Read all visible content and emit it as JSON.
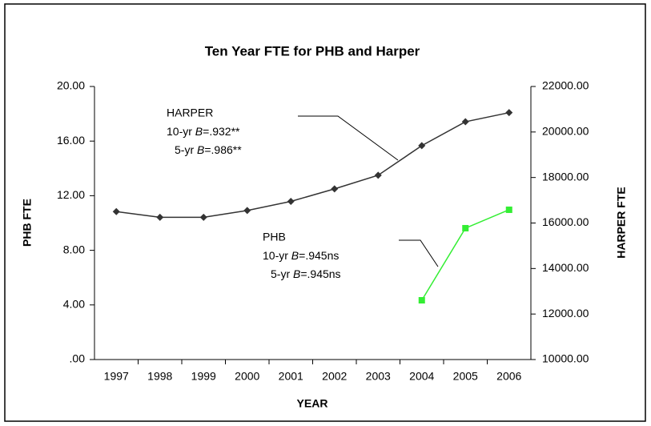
{
  "chart_data": {
    "type": "line",
    "title": "Ten Year FTE for PHB and Harper",
    "xlabel": "YEAR",
    "ylabel": "PHB FTE",
    "y2label": "HARPER FTE",
    "categories": [
      "1997",
      "1998",
      "1999",
      "2000",
      "2001",
      "2002",
      "2003",
      "2004",
      "2005",
      "2006"
    ],
    "ylim": [
      0,
      20
    ],
    "yticks": [
      {
        "value": 0,
        "label": ".00"
      },
      {
        "value": 4,
        "label": "4.00"
      },
      {
        "value": 8,
        "label": "8.00"
      },
      {
        "value": 12,
        "label": "12.00"
      },
      {
        "value": 16,
        "label": "16.00"
      },
      {
        "value": 20,
        "label": "20.00"
      }
    ],
    "y2lim": [
      10000,
      22000
    ],
    "y2ticks": [
      {
        "value": 10000,
        "label": "10000.00"
      },
      {
        "value": 12000,
        "label": "12000.00"
      },
      {
        "value": 14000,
        "label": "14000.00"
      },
      {
        "value": 16000,
        "label": "16000.00"
      },
      {
        "value": 18000,
        "label": "18000.00"
      },
      {
        "value": 20000,
        "label": "20000.00"
      },
      {
        "value": 22000,
        "label": "22000.00"
      }
    ],
    "series": [
      {
        "name": "HARPER",
        "color": "#333333",
        "marker": "diamond",
        "axis": "y2",
        "values": [
          16500,
          16250,
          16250,
          16550,
          16950,
          17500,
          18100,
          19400,
          20450,
          20850
        ]
      },
      {
        "name": "PHB",
        "color": "#33ee33",
        "marker": "square",
        "axis": "y",
        "values": [
          null,
          null,
          null,
          null,
          null,
          null,
          null,
          4.34,
          9.62,
          10.97
        ]
      }
    ],
    "annotations": [
      {
        "title": "HARPER",
        "lines": [
          {
            "pre": "10-yr ",
            "sym": "B",
            "post": "=.932**"
          },
          {
            "pre": "5-yr ",
            "sym": "B",
            "post": "=.986**"
          }
        ]
      },
      {
        "title": "PHB",
        "lines": [
          {
            "pre": "10-yr ",
            "sym": "B",
            "post": "=.945ns"
          },
          {
            "pre": "5-yr ",
            "sym": "B",
            "post": "=.945ns"
          }
        ]
      }
    ]
  }
}
